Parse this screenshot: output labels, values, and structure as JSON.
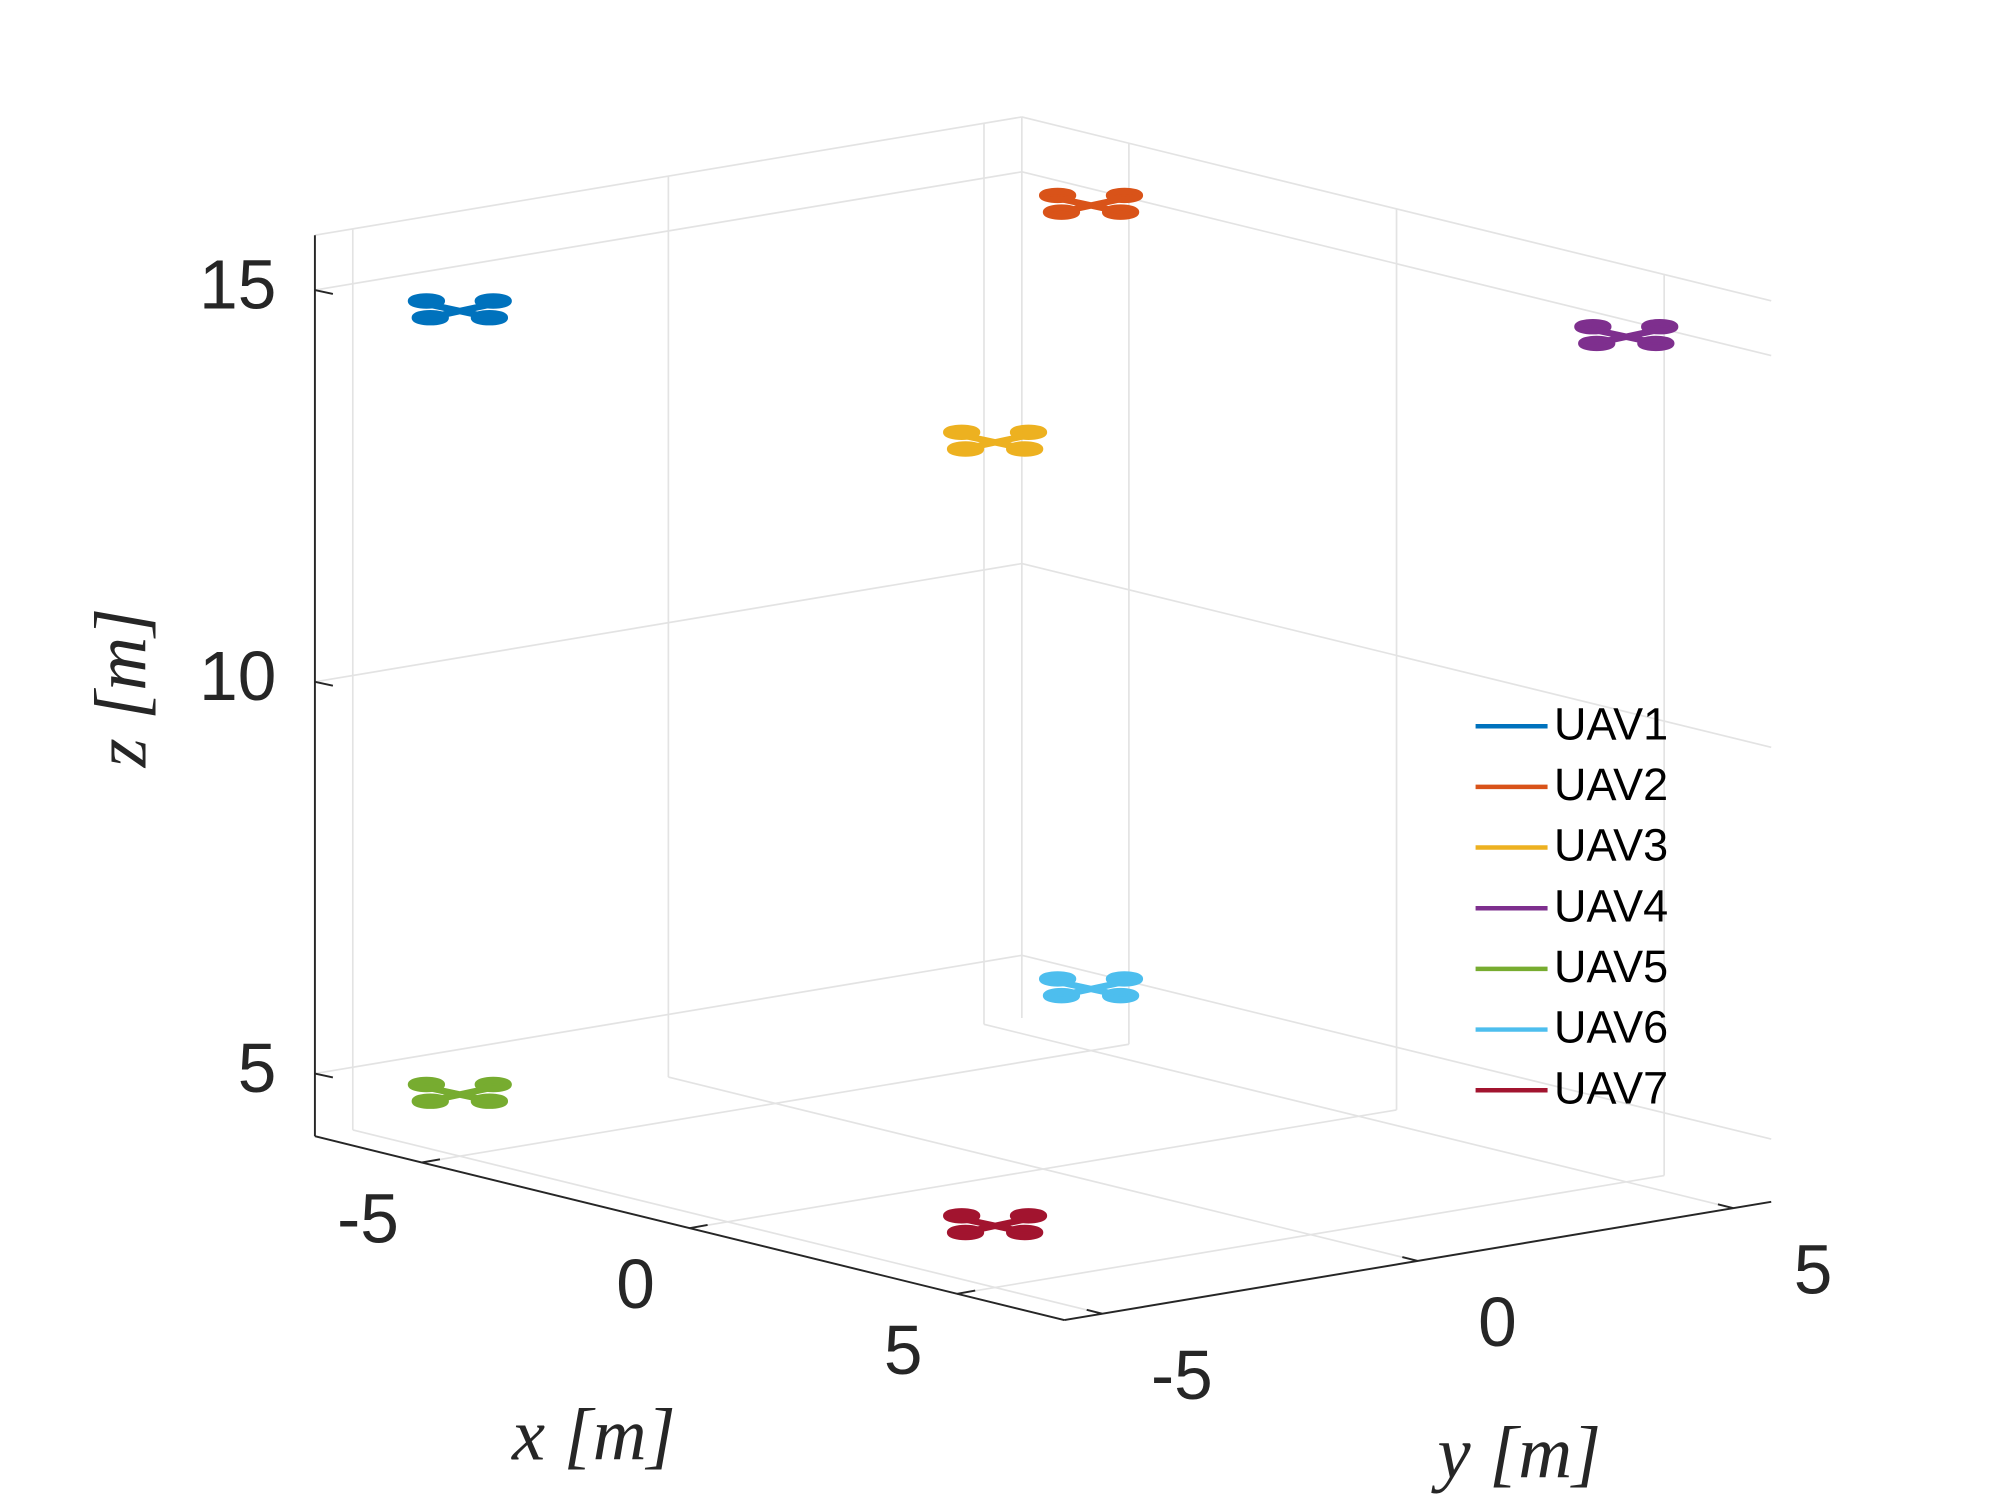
{
  "chart_data": {
    "type": "scatter3d",
    "xlabel": "x [m]",
    "ylabel": "y [m]",
    "zlabel": "z [m]",
    "xlim": [
      -7,
      7
    ],
    "ylim": [
      -5.6,
      5.6
    ],
    "zlim": [
      4.2,
      15.7
    ],
    "xticks": [
      -5,
      0,
      5
    ],
    "yticks": [
      -5,
      0,
      5
    ],
    "zticks": [
      5,
      10,
      15
    ],
    "grid": true,
    "legend": "right",
    "series": [
      {
        "name": "UAV1",
        "color": "#0072BD",
        "x": [
          -5
        ],
        "y": [
          -5
        ],
        "z": [
          15
        ]
      },
      {
        "name": "UAV2",
        "color": "#D95319",
        "x": [
          -5
        ],
        "y": [
          5
        ],
        "z": [
          15
        ]
      },
      {
        "name": "UAV3",
        "color": "#EDB120",
        "x": [
          5
        ],
        "y": [
          -5
        ],
        "z": [
          15
        ]
      },
      {
        "name": "UAV4",
        "color": "#7E2F8E",
        "x": [
          5
        ],
        "y": [
          5
        ],
        "z": [
          15
        ]
      },
      {
        "name": "UAV5",
        "color": "#77AC30",
        "x": [
          -5
        ],
        "y": [
          -5
        ],
        "z": [
          5
        ]
      },
      {
        "name": "UAV6",
        "color": "#4DBEEE",
        "x": [
          -5
        ],
        "y": [
          5
        ],
        "z": [
          5
        ]
      },
      {
        "name": "UAV7",
        "color": "#A2142F",
        "x": [
          5
        ],
        "y": [
          -5
        ],
        "z": [
          5
        ]
      }
    ]
  }
}
